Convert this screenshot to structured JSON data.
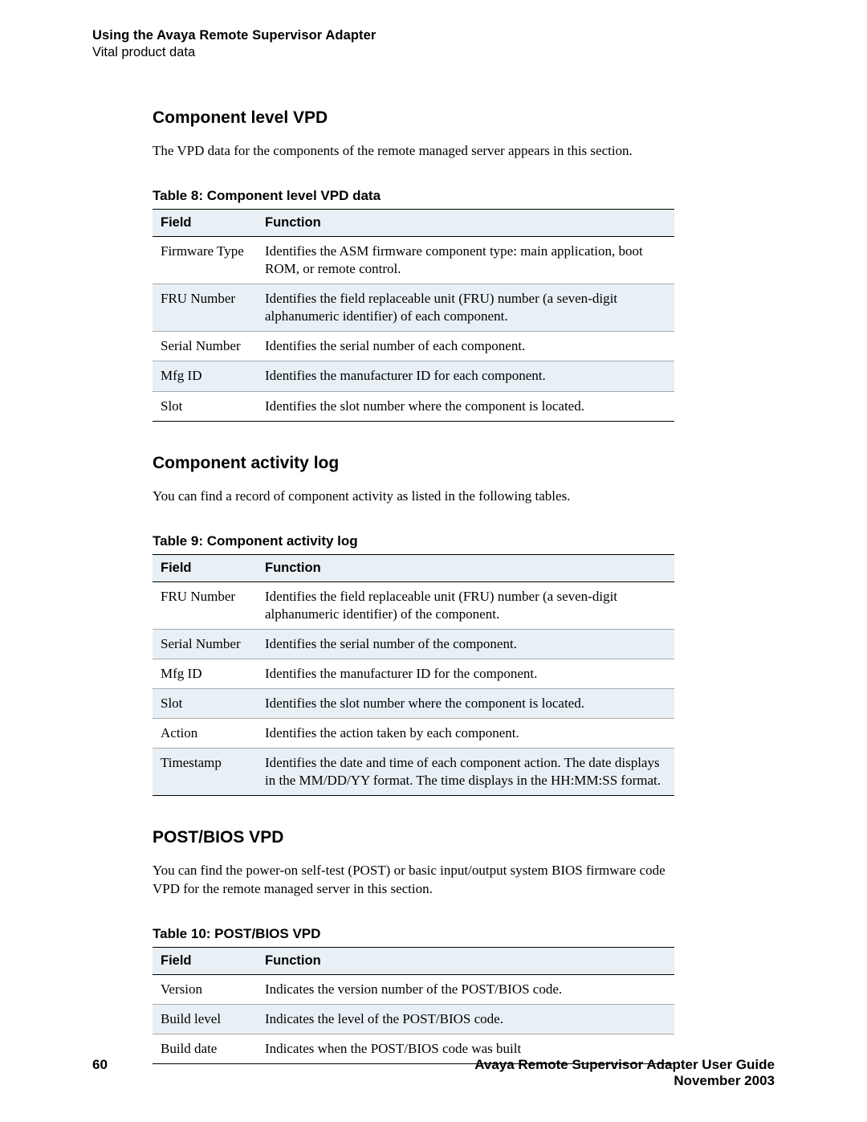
{
  "header": {
    "title": "Using the Avaya Remote Supervisor Adapter",
    "subtitle": "Vital product data"
  },
  "sections": [
    {
      "heading": "Component level VPD",
      "paragraph": "The VPD data for the components of the remote managed server appears in this section.",
      "table": {
        "caption": "Table 8: Component level VPD data",
        "header_bg": "#e8f0f6",
        "row_stripe_bg": "#e8f0f6",
        "columns": [
          "Field",
          "Function"
        ],
        "rows": [
          [
            "Firmware Type",
            "Identifies the ASM firmware component type: main application, boot ROM, or remote control."
          ],
          [
            "FRU Number",
            "Identifies the field replaceable unit (FRU) number (a seven-digit alphanumeric identifier) of each component."
          ],
          [
            "Serial Number",
            "Identifies the serial number of each component."
          ],
          [
            "Mfg ID",
            "Identifies the manufacturer ID for each component."
          ],
          [
            "Slot",
            "Identifies the slot number where the component is located."
          ]
        ]
      }
    },
    {
      "heading": "Component activity log",
      "paragraph": "You can find a record of component activity as listed in the following tables.",
      "table": {
        "caption": "Table 9: Component activity log",
        "header_bg": "#e8f0f6",
        "row_stripe_bg": "#e8f0f6",
        "columns": [
          "Field",
          "Function"
        ],
        "rows": [
          [
            "FRU Number",
            "Identifies the field replaceable unit (FRU) number (a seven-digit alphanumeric identifier) of the component."
          ],
          [
            "Serial Number",
            "Identifies the serial number of the component."
          ],
          [
            "Mfg ID",
            "Identifies the manufacturer ID for the component."
          ],
          [
            "Slot",
            "Identifies the slot number where the component is located."
          ],
          [
            "Action",
            "Identifies the action taken by each component."
          ],
          [
            "Timestamp",
            "Identifies the date and time of each component action. The date displays in the MM/DD/YY format. The time displays in the HH:MM:SS format."
          ]
        ]
      }
    },
    {
      "heading": "POST/BIOS VPD",
      "paragraph": "You can find the power-on self-test (POST) or basic input/output system BIOS firmware code VPD for the remote managed server in this section.",
      "table": {
        "caption": "Table 10: POST/BIOS VPD",
        "header_bg": "#e8f0f6",
        "row_stripe_bg": "#e8f0f6",
        "columns": [
          "Field",
          "Function"
        ],
        "rows": [
          [
            "Version",
            "Indicates the version number of the POST/BIOS code."
          ],
          [
            "Build level",
            "Indicates the level of the POST/BIOS code."
          ],
          [
            "Build date",
            "Indicates when the POST/BIOS code was built"
          ]
        ]
      }
    }
  ],
  "footer": {
    "page_number": "60",
    "guide_title": "Avaya Remote Supervisor Adapter User Guide",
    "date": "November 2003"
  }
}
